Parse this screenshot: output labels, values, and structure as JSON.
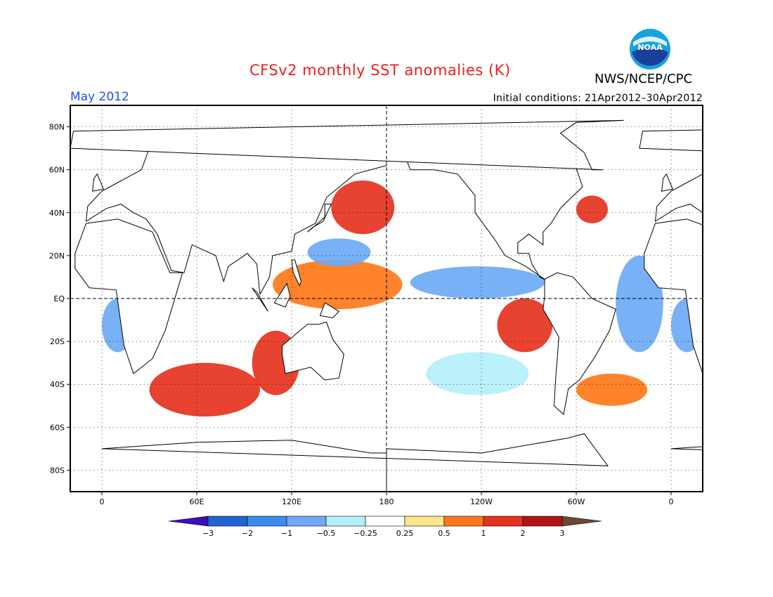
{
  "header": {
    "title": "CFSv2 monthly SST anomalies (K)",
    "agency": "NWS/NCEP/CPC",
    "logo_text": "NOAA",
    "month": "May 2012",
    "initial_conditions": "Initial conditions: 21Apr2012–30Apr2012"
  },
  "axes": {
    "lat_ticks": [
      "80N",
      "60N",
      "40N",
      "20N",
      "EQ",
      "20S",
      "40S",
      "60S",
      "80S"
    ],
    "lon_ticks": [
      "0",
      "60E",
      "120E",
      "180",
      "120W",
      "60W",
      "0"
    ]
  },
  "colorbar": {
    "labels": [
      "−3",
      "−2",
      "−1",
      "−0.5",
      "−0.25",
      "0.25",
      "0.5",
      "1",
      "2",
      "3"
    ],
    "colors": [
      "#3c0fb4",
      "#1e64d2",
      "#3c8cf0",
      "#6eaaf5",
      "#b4f0fa",
      "#ffffff",
      "#fae68c",
      "#ff7819",
      "#e6321e",
      "#b41414",
      "#6e4632"
    ]
  },
  "chart_data": {
    "type": "heatmap",
    "title": "CFSv2 monthly SST anomalies (K)",
    "units": "K",
    "valid_month": "May 2012",
    "lon_range": [
      -20,
      380
    ],
    "lat_range": [
      -90,
      90
    ],
    "color_levels": [
      -3,
      -2,
      -1,
      -0.5,
      -0.25,
      0.25,
      0.5,
      1,
      2,
      3
    ],
    "regions": [
      {
        "name": "",
        "lon": [
          108,
          190
        ],
        "lat": [
          -5,
          18
        ],
        "anomaly": 0.8
      },
      {
        "name": "",
        "lon": [
          145,
          185
        ],
        "lat": [
          30,
          55
        ],
        "anomaly": 1.0
      },
      {
        "name": "",
        "lon": [
          195,
          280
        ],
        "lat": [
          0,
          15
        ],
        "anomaly": -0.7
      },
      {
        "name": "",
        "lon": [
          250,
          285
        ],
        "lat": [
          -25,
          0
        ],
        "anomaly": 1.0
      },
      {
        "name": "",
        "lon": [
          300,
          320
        ],
        "lat": [
          35,
          48
        ],
        "anomaly": 1.6
      },
      {
        "name": "",
        "lon": [
          325,
          355
        ],
        "lat": [
          -25,
          20
        ],
        "anomaly": -0.7
      },
      {
        "name": "",
        "lon": [
          0,
          20
        ],
        "lat": [
          -25,
          0
        ],
        "anomaly": -0.6
      },
      {
        "name": "",
        "lon": [
          30,
          100
        ],
        "lat": [
          -55,
          -30
        ],
        "anomaly": 1.0
      },
      {
        "name": "",
        "lon": [
          95,
          125
        ],
        "lat": [
          -45,
          -15
        ],
        "anomaly": 1.2
      },
      {
        "name": "",
        "lon": [
          130,
          170
        ],
        "lat": [
          15,
          28
        ],
        "anomaly": -0.7
      },
      {
        "name": "",
        "lon": [
          205,
          270
        ],
        "lat": [
          -45,
          -25
        ],
        "anomaly": -0.5
      },
      {
        "name": "",
        "lon": [
          300,
          345
        ],
        "lat": [
          -50,
          -35
        ],
        "anomaly": 0.9
      }
    ]
  }
}
